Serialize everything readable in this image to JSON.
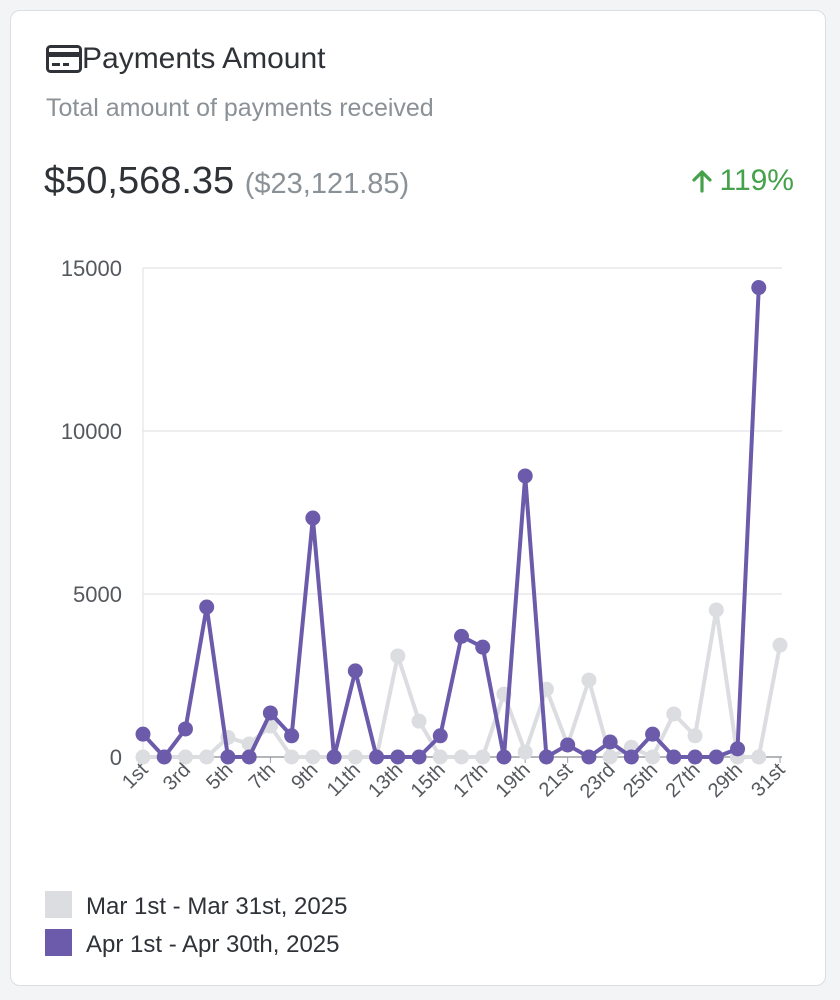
{
  "header": {
    "title": "Payments Amount",
    "subtitle": "Total amount of payments received",
    "amount": "$50,568.35",
    "previous_amount": "($23,121.85)",
    "change": "119%"
  },
  "chart_data": {
    "type": "line",
    "categories": [
      "1st",
      null,
      "3rd",
      null,
      "5th",
      null,
      "7th",
      null,
      "9th",
      null,
      "11th",
      null,
      "13th",
      null,
      "15th",
      null,
      "17th",
      null,
      "19th",
      null,
      "21st",
      null,
      "23rd",
      null,
      "25th",
      null,
      "27th",
      null,
      "29th",
      null,
      "31st"
    ],
    "series": [
      {
        "name": "Mar 1st - Mar 31st, 2025",
        "color": "#dcdde1",
        "values": [
          0,
          0,
          0,
          0,
          600,
          400,
          950,
          0,
          0,
          0,
          0,
          0,
          3100,
          1100,
          0,
          0,
          0,
          1930,
          150,
          2080,
          370,
          2360,
          0,
          300,
          0,
          1320,
          650,
          4510,
          0,
          0,
          3430
        ]
      },
      {
        "name": "Apr 1st - Apr 30th, 2025",
        "color": "#6b5baa",
        "values": [
          700,
          0,
          860,
          4600,
          0,
          0,
          1350,
          650,
          7330,
          0,
          2640,
          0,
          0,
          0,
          650,
          3700,
          3370,
          0,
          8620,
          0,
          370,
          0,
          460,
          0,
          700,
          0,
          0,
          0,
          250,
          14400,
          null
        ]
      }
    ],
    "ylim": [
      0,
      15000
    ],
    "yticks": [
      0,
      5000,
      10000,
      15000
    ],
    "grid": true,
    "legend": "bottom-left"
  }
}
